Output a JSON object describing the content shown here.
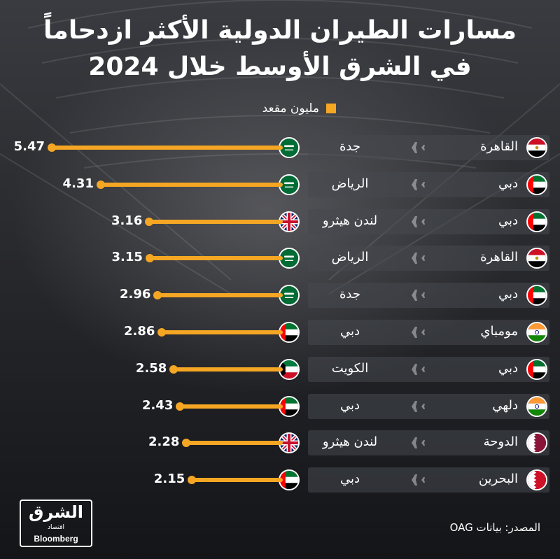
{
  "title_line1": "مسارات الطيران الدولية الأكثر ازدحاماً",
  "title_line2": "في الشرق الأوسط  خلال 2024",
  "legend": {
    "label": "مليون مقعد",
    "color": "#f5a623"
  },
  "source": "المصدر: بيانات OAG",
  "logo": {
    "main": "الشرق",
    "sub": "اقتصاد",
    "brand": "Bloomberg"
  },
  "chart_data": {
    "type": "bar",
    "orientation": "horizontal",
    "unit": "مليون مقعد",
    "bar_color": "#f5a623",
    "rows": [
      {
        "origin": "القاهرة",
        "origin_flag": "egypt",
        "destination": "جدة",
        "destination_flag": "saudi-arabia",
        "value": 5.47,
        "label": "5.47"
      },
      {
        "origin": "دبي",
        "origin_flag": "uae",
        "destination": "الرياض",
        "destination_flag": "saudi-arabia",
        "value": 4.31,
        "label": "4.31"
      },
      {
        "origin": "دبي",
        "origin_flag": "uae",
        "destination": "لندن هيثرو",
        "destination_flag": "uk",
        "value": 3.16,
        "label": "3.16"
      },
      {
        "origin": "القاهرة",
        "origin_flag": "egypt",
        "destination": "الرياض",
        "destination_flag": "saudi-arabia",
        "value": 3.15,
        "label": "3.15"
      },
      {
        "origin": "دبي",
        "origin_flag": "uae",
        "destination": "جدة",
        "destination_flag": "saudi-arabia",
        "value": 2.96,
        "label": "2.96"
      },
      {
        "origin": "مومباي",
        "origin_flag": "india",
        "destination": "دبي",
        "destination_flag": "uae",
        "value": 2.86,
        "label": "2.86"
      },
      {
        "origin": "دبي",
        "origin_flag": "uae",
        "destination": "الكويت",
        "destination_flag": "kuwait",
        "value": 2.58,
        "label": "2.58"
      },
      {
        "origin": "دلهي",
        "origin_flag": "india",
        "destination": "دبي",
        "destination_flag": "uae",
        "value": 2.43,
        "label": "2.43"
      },
      {
        "origin": "الدوحة",
        "origin_flag": "qatar",
        "destination": "لندن هيثرو",
        "destination_flag": "uk",
        "value": 2.28,
        "label": "2.28"
      },
      {
        "origin": "البحرين",
        "origin_flag": "bahrain",
        "destination": "دبي",
        "destination_flag": "uae",
        "value": 2.15,
        "label": "2.15"
      }
    ]
  }
}
